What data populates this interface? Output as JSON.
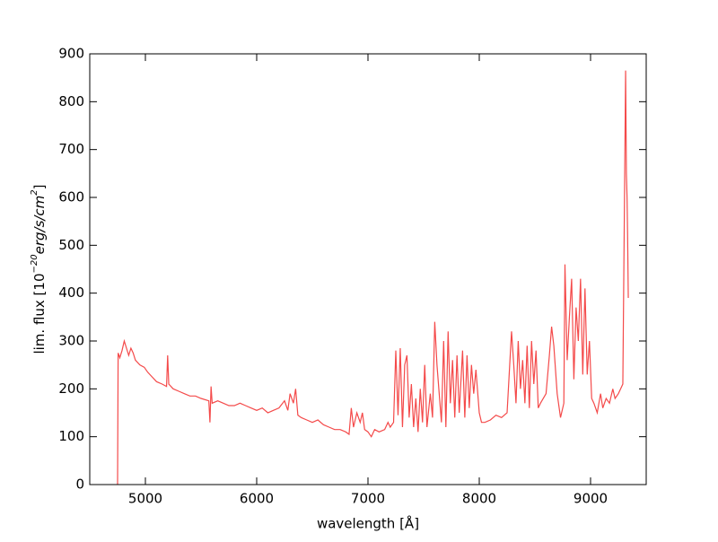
{
  "chart_data": {
    "type": "line",
    "x_label": "wavelength [Å]",
    "y_label": [
      "lim. flux [10",
      "−20",
      "erg/s/cm",
      "2",
      "]"
    ],
    "xlim": [
      4500,
      9500
    ],
    "xticks": [
      5000,
      6000,
      7000,
      8000,
      9000
    ],
    "ylim": [
      0,
      900
    ],
    "yticks": [
      0,
      100,
      200,
      300,
      400,
      500,
      600,
      700,
      800,
      900
    ],
    "x": [
      4750,
      4755,
      4770,
      4790,
      4810,
      4830,
      4850,
      4870,
      4890,
      4910,
      4950,
      4990,
      5020,
      5060,
      5100,
      5150,
      5190,
      5200,
      5210,
      5250,
      5300,
      5350,
      5400,
      5450,
      5500,
      5570,
      5580,
      5590,
      5600,
      5650,
      5700,
      5750,
      5800,
      5850,
      5900,
      5950,
      6000,
      6050,
      6100,
      6150,
      6200,
      6250,
      6280,
      6300,
      6330,
      6350,
      6370,
      6400,
      6450,
      6500,
      6550,
      6600,
      6650,
      6700,
      6750,
      6800,
      6830,
      6850,
      6870,
      6900,
      6930,
      6950,
      6970,
      7000,
      7030,
      7060,
      7100,
      7150,
      7180,
      7200,
      7230,
      7250,
      7270,
      7290,
      7310,
      7330,
      7350,
      7370,
      7390,
      7410,
      7430,
      7450,
      7470,
      7490,
      7510,
      7530,
      7560,
      7580,
      7600,
      7620,
      7640,
      7660,
      7680,
      7700,
      7720,
      7740,
      7760,
      7780,
      7800,
      7820,
      7850,
      7870,
      7890,
      7910,
      7930,
      7950,
      7970,
      8000,
      8020,
      8050,
      8100,
      8150,
      8200,
      8250,
      8290,
      8310,
      8330,
      8350,
      8370,
      8390,
      8410,
      8430,
      8450,
      8470,
      8490,
      8510,
      8530,
      8550,
      8600,
      8630,
      8650,
      8670,
      8700,
      8730,
      8760,
      8770,
      8790,
      8810,
      8830,
      8850,
      8870,
      8890,
      8910,
      8930,
      8950,
      8970,
      8990,
      9010,
      9030,
      9060,
      9090,
      9110,
      9140,
      9170,
      9200,
      9220,
      9250,
      9270,
      9290,
      9305,
      9315,
      9322,
      9328,
      9333,
      9339
    ],
    "series": [
      {
        "color": "#f44a4a",
        "values": [
          0,
          275,
          265,
          280,
          300,
          285,
          270,
          285,
          275,
          260,
          250,
          245,
          235,
          225,
          215,
          210,
          205,
          270,
          210,
          200,
          195,
          190,
          185,
          185,
          180,
          175,
          130,
          205,
          170,
          175,
          170,
          165,
          165,
          170,
          165,
          160,
          155,
          160,
          150,
          155,
          160,
          175,
          155,
          190,
          170,
          200,
          145,
          140,
          135,
          130,
          135,
          125,
          120,
          115,
          115,
          110,
          105,
          160,
          120,
          150,
          130,
          150,
          115,
          110,
          100,
          115,
          110,
          115,
          130,
          120,
          130,
          280,
          145,
          285,
          120,
          250,
          270,
          140,
          210,
          120,
          180,
          110,
          200,
          130,
          250,
          120,
          190,
          140,
          340,
          250,
          190,
          130,
          300,
          120,
          320,
          170,
          260,
          140,
          270,
          150,
          280,
          140,
          270,
          160,
          250,
          190,
          240,
          150,
          130,
          130,
          135,
          145,
          140,
          150,
          320,
          250,
          170,
          300,
          200,
          260,
          170,
          290,
          160,
          300,
          210,
          280,
          160,
          170,
          190,
          270,
          330,
          290,
          190,
          140,
          170,
          460,
          260,
          350,
          430,
          220,
          370,
          300,
          430,
          230,
          410,
          230,
          300,
          180,
          170,
          150,
          190,
          160,
          180,
          170,
          200,
          180,
          190,
          200,
          210,
          600,
          865,
          650,
          600,
          520,
          390
        ]
      }
    ]
  }
}
